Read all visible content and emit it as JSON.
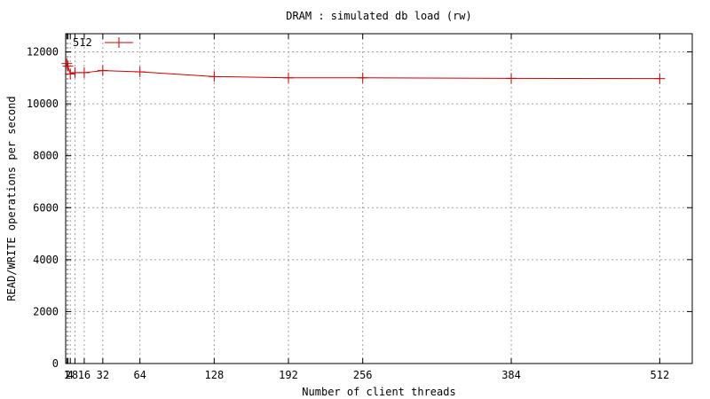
{
  "chart_data": {
    "type": "line",
    "title": "DRAM : simulated db load (rw)",
    "xlabel": "Number of client threads",
    "ylabel": "READ/WRITE operations per second",
    "xlim": [
      0,
      540
    ],
    "ylim": [
      0,
      12700
    ],
    "xticks": [
      1,
      2,
      4,
      8,
      16,
      32,
      64,
      128,
      192,
      256,
      384,
      512
    ],
    "xtick_labels": [
      "1",
      "2",
      "4",
      "8",
      "16",
      "32",
      "64",
      "128",
      "192",
      "256",
      "384",
      "512"
    ],
    "yticks": [
      0,
      2000,
      4000,
      6000,
      8000,
      10000,
      12000
    ],
    "ytick_labels": [
      "0",
      "2000",
      "4000",
      "6000",
      "8000",
      "10000",
      "12000"
    ],
    "grid": true,
    "legend_position": "top-left",
    "series": [
      {
        "name": "512",
        "color": "#cc0000",
        "marker": "plus",
        "x": [
          1,
          2,
          4,
          8,
          16,
          32,
          64,
          128,
          192,
          256,
          384,
          512
        ],
        "y": [
          11550,
          11450,
          11150,
          11200,
          11200,
          11280,
          11230,
          11050,
          11000,
          11000,
          10980,
          10970
        ]
      }
    ]
  }
}
